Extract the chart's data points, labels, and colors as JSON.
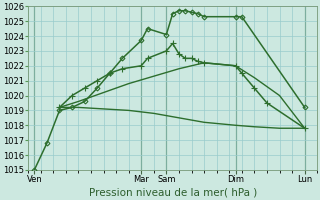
{
  "bg_color": "#cce8e0",
  "grid_color": "#99cccc",
  "line_color": "#2d6e2d",
  "xlabel": "Pression niveau de la mer( hPa )",
  "ylim": [
    1015,
    1026
  ],
  "ytick_min": 1015,
  "ytick_max": 1026,
  "xlim_min": 0,
  "xlim_max": 23,
  "xtick_positions": [
    0.5,
    9,
    11,
    16.5,
    22
  ],
  "xtick_labels": [
    "Ven",
    "Mar",
    "Sam",
    "Dim",
    "Lun"
  ],
  "vline_positions": [
    0.5,
    9,
    11,
    16.5,
    22
  ],
  "lines": [
    {
      "x": [
        0.5,
        1.5,
        2.5,
        3.5,
        4.5,
        5.5,
        6.5,
        7.5,
        9,
        9.5,
        11,
        11.5,
        12,
        12.5,
        13,
        13.5,
        14,
        16.5,
        17,
        22
      ],
      "y": [
        1015.0,
        1016.8,
        1019.0,
        1019.2,
        1019.6,
        1020.5,
        1021.5,
        1022.5,
        1023.7,
        1024.5,
        1024.1,
        1025.5,
        1025.7,
        1025.7,
        1025.6,
        1025.5,
        1025.3,
        1025.3,
        1025.3,
        1019.2
      ],
      "marker": "D",
      "markersize": 2.5,
      "linewidth": 1.1,
      "markerfacecolor": "none"
    },
    {
      "x": [
        2.5,
        3.5,
        4.5,
        5.5,
        6.5,
        7.5,
        9,
        9.5,
        11,
        11.5,
        12,
        12.5,
        13,
        13.5,
        14,
        16.5,
        17,
        18,
        19,
        22
      ],
      "y": [
        1019.2,
        1020.0,
        1020.5,
        1021.0,
        1021.5,
        1021.8,
        1022.0,
        1022.5,
        1023.0,
        1023.5,
        1022.8,
        1022.5,
        1022.5,
        1022.3,
        1022.2,
        1022.0,
        1021.5,
        1020.5,
        1019.5,
        1017.8
      ],
      "marker": "+",
      "markersize": 4.5,
      "linewidth": 1.1,
      "markerfacecolor": "#2d6e2d"
    },
    {
      "x": [
        2.5,
        4.0,
        6.0,
        8.0,
        10.0,
        12.0,
        14.0,
        16.5,
        18.0,
        20.0,
        22.0
      ],
      "y": [
        1019.2,
        1019.6,
        1020.2,
        1020.8,
        1021.3,
        1021.8,
        1022.2,
        1022.0,
        1021.2,
        1020.0,
        1017.8
      ],
      "marker": null,
      "markersize": 0,
      "linewidth": 1.0,
      "markerfacecolor": "none"
    },
    {
      "x": [
        2.5,
        4.0,
        6.0,
        8.0,
        10.0,
        12.0,
        14.0,
        16.5,
        18.0,
        20.0,
        22.0
      ],
      "y": [
        1019.2,
        1019.2,
        1019.1,
        1019.0,
        1018.8,
        1018.5,
        1018.2,
        1018.0,
        1017.9,
        1017.8,
        1017.8
      ],
      "marker": null,
      "markersize": 0,
      "linewidth": 1.0,
      "markerfacecolor": "none"
    }
  ],
  "tick_fontsize": 6,
  "xlabel_fontsize": 7.5,
  "xlabel_color": "#2d5e2d"
}
